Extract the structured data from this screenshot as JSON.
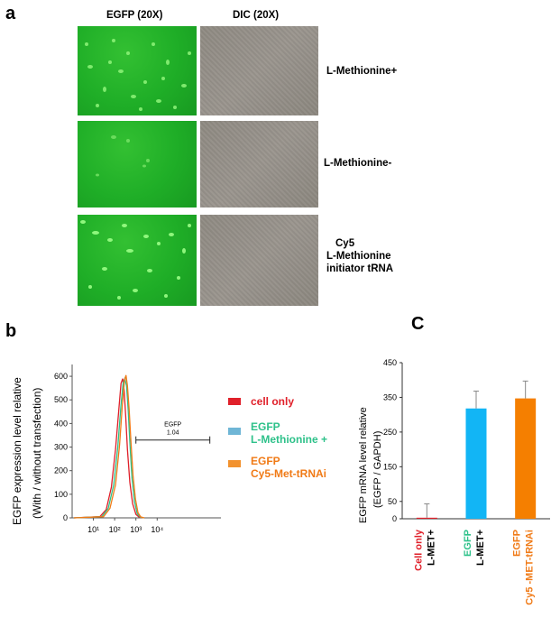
{
  "panel_a": {
    "letter": "a",
    "headers": {
      "egfp": "EGFP (20X)",
      "dic": "DIC (20X)"
    },
    "rows": [
      {
        "label_lines": [
          "L-Methionine+"
        ]
      },
      {
        "label_lines": [
          "L-Methionine-"
        ]
      },
      {
        "label_lines": [
          "Cy5",
          "L-Methionine",
          "initiator tRNA"
        ]
      }
    ]
  },
  "panel_b": {
    "letter": "b",
    "ylabel_line1": "EGFP expression level relative",
    "ylabel_line2": "(With / without transfection)",
    "gate_label": "EGFP",
    "gate_value": "1.04",
    "legend": [
      {
        "lines": [
          "cell only"
        ],
        "color": "#e0202a",
        "swatch": "#e0202a"
      },
      {
        "lines": [
          "EGFP",
          "L-Methionine +"
        ],
        "color": "#2ec18a",
        "swatch": "#6fb6d6"
      },
      {
        "lines": [
          "EGFP",
          "Cy5-Met-tRNAi"
        ],
        "color": "#f07a16",
        "swatch": "#f2922e"
      }
    ]
  },
  "panel_c": {
    "letter": "C",
    "ylabel_line1": "EGFP mRNA level  relative",
    "ylabel_line2": "(EGFP / GAPDH)",
    "xlabels": [
      {
        "lines": [
          "Cell only",
          "L-MET+"
        ],
        "colors": [
          "#e0202a",
          "#000000"
        ]
      },
      {
        "lines": [
          "EGFP",
          "L-MET+"
        ],
        "colors": [
          "#2ec18a",
          "#000000"
        ]
      },
      {
        "lines": [
          "EGFP",
          "Cy5 -MET-tRNAi"
        ],
        "colors": [
          "#f07a16",
          "#f07a16"
        ]
      }
    ]
  },
  "chart_data": [
    {
      "type": "line",
      "panel": "b",
      "xscale": "log",
      "xlim": [
        1,
        10000000
      ],
      "ylim": [
        0,
        650
      ],
      "x_tick_labels": [
        "10¹",
        "10²",
        "10³",
        "10⁴"
      ],
      "y_ticks": [
        0,
        100,
        200,
        300,
        400,
        500,
        600
      ],
      "gate": {
        "x_start": 1000,
        "x_end": 3000000,
        "y": 330
      },
      "series": [
        {
          "name": "cell only",
          "color": "#e0202a",
          "x": [
            20,
            40,
            70,
            110,
            160,
            200,
            240,
            280,
            330,
            400,
            520,
            700,
            1000,
            1400
          ],
          "y": [
            5,
            35,
            130,
            290,
            470,
            570,
            590,
            540,
            430,
            290,
            150,
            60,
            15,
            3
          ]
        },
        {
          "name": "EGFP L-Methionine +",
          "color": "#2ec18a",
          "x": [
            25,
            50,
            90,
            140,
            200,
            250,
            300,
            360,
            430,
            520,
            650,
            850,
            1150,
            1600
          ],
          "y": [
            5,
            40,
            140,
            300,
            480,
            570,
            590,
            560,
            460,
            320,
            170,
            70,
            18,
            3
          ]
        },
        {
          "name": "EGFP Cy5-Met-tRNAi",
          "color": "#f07a16",
          "x": [
            30,
            60,
            110,
            170,
            230,
            290,
            340,
            400,
            480,
            580,
            730,
            950,
            1250,
            1700
          ],
          "y": [
            5,
            40,
            140,
            310,
            480,
            580,
            605,
            560,
            460,
            330,
            180,
            80,
            22,
            4
          ]
        }
      ]
    },
    {
      "type": "bar",
      "panel": "C",
      "categories": [
        "Cell only L-MET+",
        "EGFP L-MET+",
        "EGFP Cy5 -MET-tRNAi"
      ],
      "values": [
        3,
        318,
        347
      ],
      "errors": [
        40,
        50,
        50
      ],
      "colors": [
        "#e0202a",
        "#12b5f5",
        "#f57f00"
      ],
      "ylim": [
        0,
        450
      ],
      "y_ticks": [
        0,
        50,
        150,
        250,
        350,
        450
      ]
    }
  ]
}
